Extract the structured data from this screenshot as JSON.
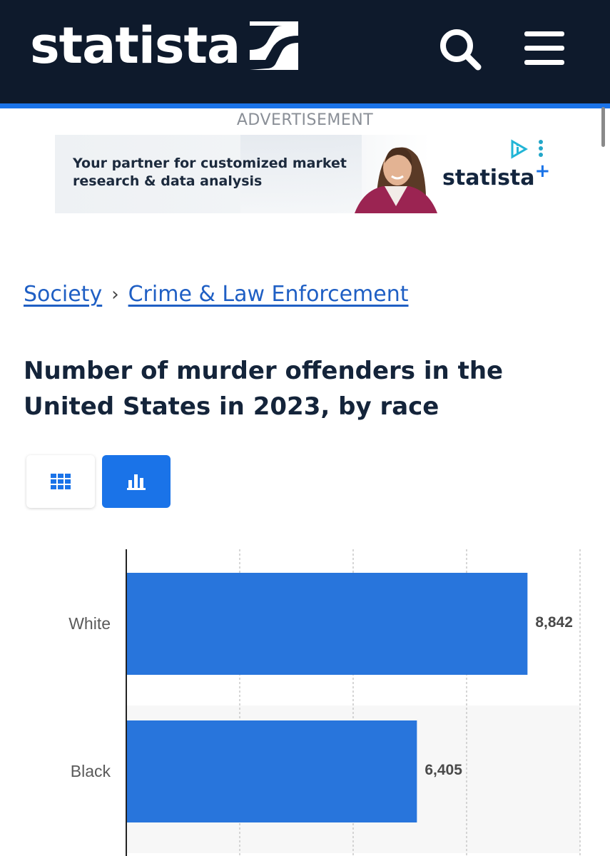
{
  "header": {
    "logo_text": "statista",
    "search_icon": "search-icon",
    "menu_icon": "hamburger-menu-icon",
    "background_color": "#0e1a2c",
    "accent_color": "#1a73e8"
  },
  "ad": {
    "label": "ADVERTISEMENT",
    "copy_line1": "Your partner for customized market",
    "copy_line2": "research & data analysis",
    "brand": "statista",
    "brand_plus": "+"
  },
  "breadcrumb": {
    "items": [
      "Society",
      "Crime & Law Enforcement"
    ],
    "separator": "›"
  },
  "page": {
    "title": "Number of murder offenders in the United States in 2023, by race"
  },
  "view_toggle": {
    "table_icon": "table-grid-icon",
    "chart_icon": "bar-chart-icon",
    "selected": "chart"
  },
  "chart_data": {
    "type": "bar",
    "orientation": "horizontal",
    "categories": [
      "White",
      "Black"
    ],
    "values": [
      8842,
      6405
    ],
    "value_labels": [
      "8,842",
      "6,405"
    ],
    "bar_color": "#2875dc",
    "xlim": [
      0,
      10000
    ],
    "grid": true
  }
}
